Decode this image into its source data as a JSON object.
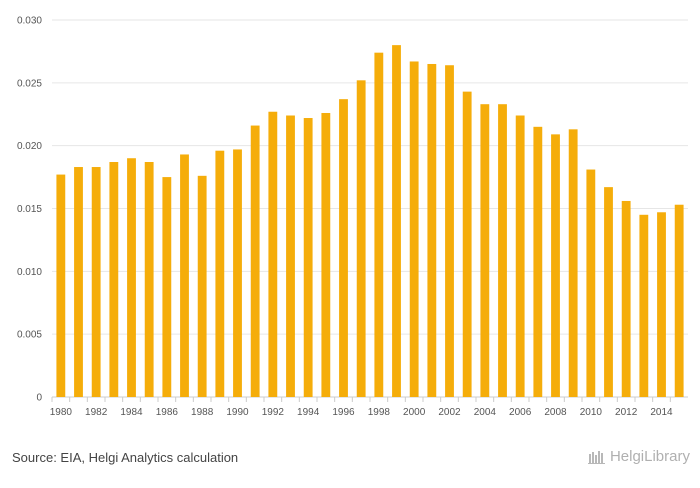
{
  "chart_data": {
    "type": "bar",
    "title": "",
    "xlabel": "",
    "ylabel": "",
    "categories": [
      1980,
      1981,
      1982,
      1983,
      1984,
      1985,
      1986,
      1987,
      1988,
      1989,
      1990,
      1991,
      1992,
      1993,
      1994,
      1995,
      1996,
      1997,
      1998,
      1999,
      2000,
      2001,
      2002,
      2003,
      2004,
      2005,
      2006,
      2007,
      2008,
      2009,
      2010,
      2011,
      2012,
      2013,
      2014,
      2015
    ],
    "values": [
      0.0177,
      0.0183,
      0.0183,
      0.0187,
      0.019,
      0.0187,
      0.0175,
      0.0193,
      0.0176,
      0.0196,
      0.0197,
      0.0216,
      0.0227,
      0.0224,
      0.0222,
      0.0226,
      0.0237,
      0.0252,
      0.0274,
      0.028,
      0.0267,
      0.0265,
      0.0264,
      0.0243,
      0.0233,
      0.0233,
      0.0224,
      0.0215,
      0.0209,
      0.0213,
      0.0181,
      0.0167,
      0.0156,
      0.0145,
      0.0147,
      0.0153
    ],
    "x_tick_labels": [
      "1980",
      "1982",
      "1984",
      "1986",
      "1988",
      "1990",
      "1992",
      "1994",
      "1996",
      "1998",
      "2000",
      "2002",
      "2004",
      "2006",
      "2008",
      "2010",
      "2012",
      "2014"
    ],
    "y_ticks": [
      0,
      0.005,
      0.01,
      0.015,
      0.02,
      0.025,
      0.03
    ],
    "y_tick_labels": [
      "0",
      "0.005",
      "0.010",
      "0.015",
      "0.020",
      "0.025",
      "0.030"
    ],
    "ylim": [
      0,
      0.03
    ],
    "grid": true,
    "bar_color": "#F5AD0A"
  },
  "footer": {
    "source": "Source: EIA, Helgi Analytics calculation",
    "logo_text": "HelgiLibrary"
  }
}
